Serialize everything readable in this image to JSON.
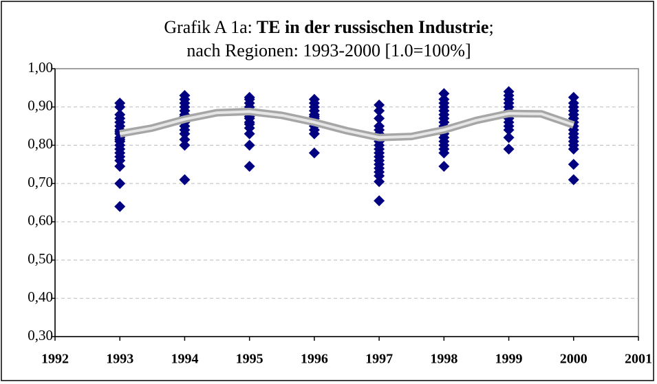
{
  "chart_data": {
    "type": "scatter",
    "title_parts": [
      "Grafik A 1a:",
      "TE in der russischen Industrie",
      ";"
    ],
    "subtitle": "nach Regionen: 1993-2000 [1.0=100%]",
    "xlim": [
      1992,
      2001
    ],
    "xticks": [
      1992,
      1993,
      1994,
      1995,
      1996,
      1997,
      1998,
      1999,
      2000,
      2001
    ],
    "ylim": [
      0.3,
      1.0
    ],
    "yticks": [
      {
        "value": 0.3,
        "label": "0,30"
      },
      {
        "value": 0.4,
        "label": "0,40"
      },
      {
        "value": 0.5,
        "label": "0,50"
      },
      {
        "value": 0.6,
        "label": "0,60"
      },
      {
        "value": 0.7,
        "label": "0,70"
      },
      {
        "value": 0.8,
        "label": "0,80"
      },
      {
        "value": 0.9,
        "label": "0,90"
      },
      {
        "value": 1.0,
        "label": "1,00"
      }
    ],
    "grid": true,
    "series": [
      {
        "color": "#000080",
        "x": [
          1993,
          1993,
          1993,
          1993,
          1993,
          1993,
          1993,
          1993,
          1993,
          1993,
          1993,
          1993,
          1993,
          1993,
          1993,
          1993,
          1993,
          1993,
          1993,
          1993,
          1994,
          1994,
          1994,
          1994,
          1994,
          1994,
          1994,
          1994,
          1994,
          1994,
          1994,
          1994,
          1994,
          1994,
          1994,
          1994,
          1995,
          1995,
          1995,
          1995,
          1995,
          1995,
          1995,
          1995,
          1995,
          1995,
          1995,
          1995,
          1995,
          1995,
          1996,
          1996,
          1996,
          1996,
          1996,
          1996,
          1996,
          1996,
          1996,
          1996,
          1996,
          1996,
          1996,
          1997,
          1997,
          1997,
          1997,
          1997,
          1997,
          1997,
          1997,
          1997,
          1997,
          1997,
          1997,
          1997,
          1997,
          1997,
          1997,
          1997,
          1997,
          1997,
          1998,
          1998,
          1998,
          1998,
          1998,
          1998,
          1998,
          1998,
          1998,
          1998,
          1998,
          1998,
          1998,
          1998,
          1998,
          1998,
          1998,
          1999,
          1999,
          1999,
          1999,
          1999,
          1999,
          1999,
          1999,
          1999,
          1999,
          1999,
          1999,
          1999,
          2000,
          2000,
          2000,
          2000,
          2000,
          2000,
          2000,
          2000,
          2000,
          2000,
          2000,
          2000,
          2000,
          2000,
          2000,
          2000
        ],
        "values": [
          0.64,
          0.7,
          0.745,
          0.76,
          0.77,
          0.78,
          0.79,
          0.8,
          0.81,
          0.815,
          0.82,
          0.83,
          0.835,
          0.84,
          0.85,
          0.86,
          0.87,
          0.88,
          0.9,
          0.91,
          0.71,
          0.8,
          0.815,
          0.83,
          0.84,
          0.85,
          0.86,
          0.865,
          0.87,
          0.875,
          0.88,
          0.89,
          0.9,
          0.91,
          0.92,
          0.93,
          0.745,
          0.8,
          0.83,
          0.845,
          0.855,
          0.86,
          0.87,
          0.875,
          0.88,
          0.89,
          0.9,
          0.91,
          0.92,
          0.925,
          0.78,
          0.83,
          0.84,
          0.85,
          0.86,
          0.865,
          0.87,
          0.875,
          0.88,
          0.89,
          0.9,
          0.91,
          0.92,
          0.655,
          0.705,
          0.72,
          0.73,
          0.74,
          0.75,
          0.76,
          0.77,
          0.78,
          0.79,
          0.8,
          0.81,
          0.82,
          0.83,
          0.84,
          0.85,
          0.87,
          0.89,
          0.905,
          0.745,
          0.78,
          0.79,
          0.8,
          0.81,
          0.82,
          0.83,
          0.84,
          0.85,
          0.86,
          0.87,
          0.88,
          0.89,
          0.9,
          0.91,
          0.92,
          0.935,
          0.79,
          0.82,
          0.84,
          0.85,
          0.86,
          0.87,
          0.88,
          0.89,
          0.9,
          0.91,
          0.92,
          0.93,
          0.94,
          0.71,
          0.75,
          0.79,
          0.8,
          0.81,
          0.82,
          0.83,
          0.84,
          0.85,
          0.86,
          0.87,
          0.88,
          0.89,
          0.9,
          0.91,
          0.925
        ]
      }
    ],
    "trend": {
      "color": "#a6a6a6",
      "x": [
        1993,
        1993.5,
        1994,
        1994.5,
        1995,
        1995.5,
        1996,
        1996.5,
        1997,
        1997.5,
        1998,
        1998.5,
        1999,
        1999.5,
        2000
      ],
      "values": [
        0.83,
        0.845,
        0.868,
        0.885,
        0.888,
        0.878,
        0.86,
        0.838,
        0.82,
        0.823,
        0.84,
        0.865,
        0.883,
        0.882,
        0.853
      ]
    }
  }
}
